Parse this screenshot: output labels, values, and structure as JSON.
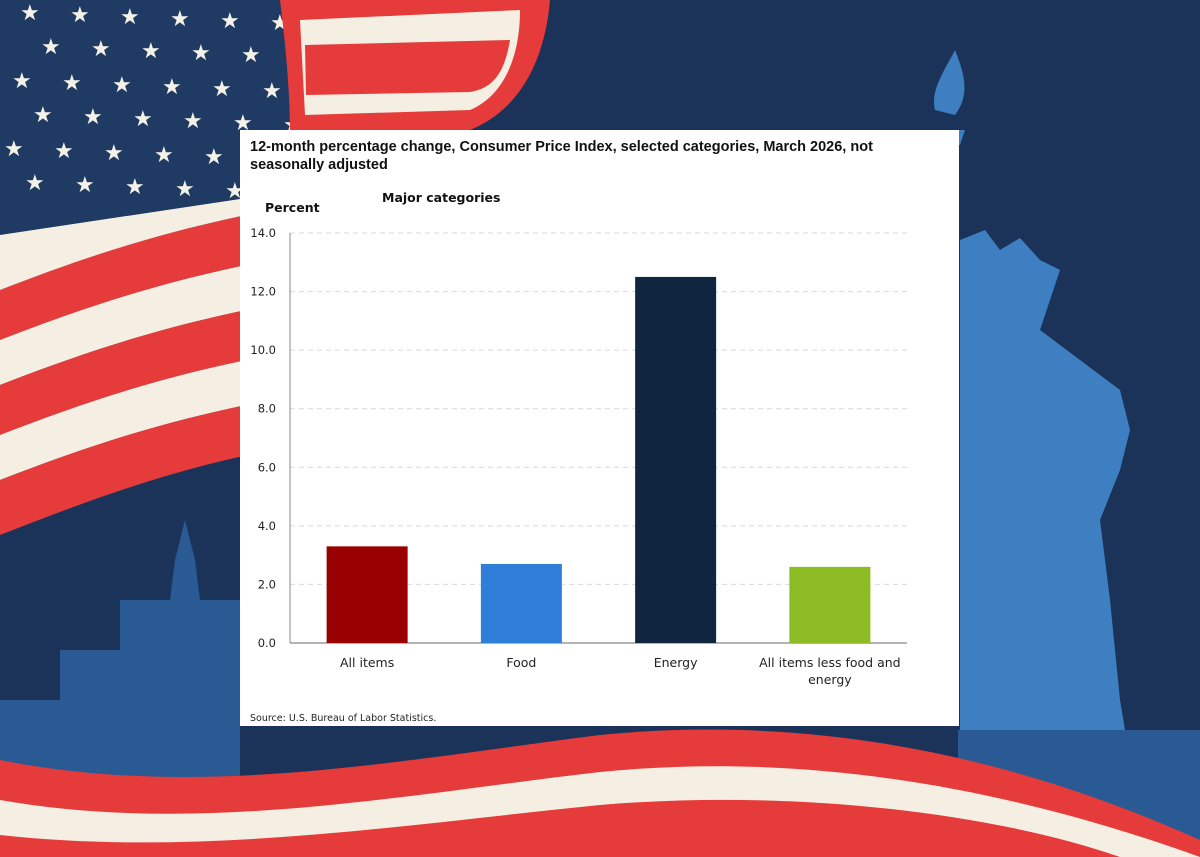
{
  "theme": {
    "background_navy": "#1b3358",
    "flag_red": "#e63b3b",
    "flag_cream": "#f4efe2",
    "star_field_navy": "#1f3a63",
    "statue_blue": "#3d7fc0",
    "skyline_blue": "#2a5a93"
  },
  "chart_data": {
    "type": "bar",
    "title_line1": "12-month percentage change, Consumer Price Index, selected categories, March 2026, not",
    "title_line2": "seasonally adjusted",
    "subtitle": "Major categories",
    "ylabel": "Percent",
    "ylim": [
      0,
      14
    ],
    "yticks": [
      "0.0",
      "2.0",
      "4.0",
      "6.0",
      "8.0",
      "10.0",
      "12.0",
      "14.0"
    ],
    "grid": true,
    "categories": [
      {
        "lines": [
          "All items"
        ]
      },
      {
        "lines": [
          "Food"
        ]
      },
      {
        "lines": [
          "Energy"
        ]
      },
      {
        "lines": [
          "All items less food and",
          "energy"
        ]
      }
    ],
    "values": [
      3.3,
      2.7,
      12.5,
      2.6
    ],
    "colors": [
      "#990000",
      "#2f7fd8",
      "#0f2540",
      "#8cbb24"
    ],
    "source": "Source: U.S. Bureau of Labor Statistics."
  }
}
